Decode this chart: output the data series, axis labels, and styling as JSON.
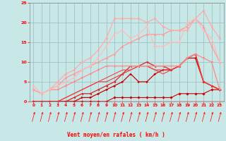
{
  "xlabel": "Vent moyen/en rafales ( km/h )",
  "xlim": [
    -0.5,
    23.5
  ],
  "ylim": [
    0,
    25
  ],
  "xtick_vals": [
    0,
    1,
    2,
    3,
    4,
    5,
    6,
    7,
    8,
    9,
    10,
    11,
    12,
    13,
    14,
    15,
    16,
    17,
    18,
    19,
    20,
    21,
    22,
    23
  ],
  "ytick_vals": [
    0,
    5,
    10,
    15,
    20,
    25
  ],
  "bg_color": "#c8e8e8",
  "grid_color": "#99bbbb",
  "lines": [
    {
      "x": [
        0,
        1,
        2,
        3,
        4,
        5,
        6,
        7,
        8,
        9,
        10,
        11,
        12,
        13,
        14,
        15,
        16,
        17,
        18,
        19,
        20,
        21,
        22,
        23
      ],
      "y": [
        0,
        0,
        0,
        0,
        0,
        0,
        0,
        0,
        0,
        0,
        1,
        1,
        1,
        1,
        1,
        1,
        1,
        1,
        2,
        2,
        2,
        2,
        3,
        3
      ],
      "color": "#cc0000",
      "lw": 0.8,
      "marker": "D",
      "ms": 1.8
    },
    {
      "x": [
        0,
        1,
        2,
        3,
        4,
        5,
        6,
        7,
        8,
        9,
        10,
        11,
        12,
        13,
        14,
        15,
        16,
        17,
        18,
        19,
        20,
        21,
        22,
        23
      ],
      "y": [
        0,
        0,
        0,
        0,
        0,
        0,
        1,
        1,
        2,
        3,
        4,
        5,
        7,
        5,
        5,
        7,
        8,
        8,
        9,
        11,
        11,
        5,
        4,
        3
      ],
      "color": "#cc0000",
      "lw": 0.9,
      "marker": ">",
      "ms": 2.0
    },
    {
      "x": [
        0,
        1,
        2,
        3,
        4,
        5,
        6,
        7,
        8,
        9,
        10,
        11,
        12,
        13,
        14,
        15,
        16,
        17,
        18,
        19,
        20,
        21,
        22,
        23
      ],
      "y": [
        0,
        0,
        0,
        0,
        0,
        1,
        2,
        2,
        3,
        4,
        5,
        7,
        9,
        9,
        10,
        9,
        9,
        8,
        9,
        11,
        12,
        5,
        4,
        3
      ],
      "color": "#dd2222",
      "lw": 0.9,
      "marker": "<",
      "ms": 2.0
    },
    {
      "x": [
        0,
        1,
        2,
        3,
        4,
        5,
        6,
        7,
        8,
        9,
        10,
        11,
        12,
        13,
        14,
        15,
        16,
        17,
        18,
        19,
        20,
        21,
        22,
        23
      ],
      "y": [
        0,
        0,
        0,
        0,
        1,
        2,
        3,
        4,
        5,
        5,
        6,
        7,
        8,
        9,
        9,
        8,
        8,
        8,
        9,
        11,
        12,
        5,
        4,
        3
      ],
      "color": "#ee3333",
      "lw": 0.8,
      "marker": null,
      "ms": 0
    },
    {
      "x": [
        0,
        1,
        2,
        3,
        4,
        5,
        6,
        7,
        8,
        9,
        10,
        11,
        12,
        13,
        14,
        15,
        16,
        17,
        18,
        19,
        20,
        21,
        22,
        23
      ],
      "y": [
        0,
        0,
        0,
        0,
        1,
        2,
        3,
        4,
        5,
        6,
        7,
        8,
        8,
        9,
        9,
        8,
        7,
        8,
        9,
        11,
        12,
        5,
        4,
        3
      ],
      "color": "#ee4444",
      "lw": 0.8,
      "marker": null,
      "ms": 0
    },
    {
      "x": [
        0,
        1,
        2,
        3,
        4,
        5,
        6,
        7,
        8,
        9,
        10,
        11,
        12,
        13,
        14,
        15,
        16,
        17,
        18,
        19,
        20,
        21,
        22,
        23
      ],
      "y": [
        3,
        2,
        3,
        3,
        4,
        5,
        6,
        7,
        8,
        9,
        9,
        9,
        9,
        9,
        9,
        9,
        9,
        9,
        9,
        11,
        12,
        11,
        10,
        3
      ],
      "color": "#ff8888",
      "lw": 0.9,
      "marker": "v",
      "ms": 2.0
    },
    {
      "x": [
        0,
        1,
        2,
        3,
        4,
        5,
        6,
        7,
        8,
        9,
        10,
        11,
        12,
        13,
        14,
        15,
        16,
        17,
        18,
        19,
        20,
        21,
        22,
        23
      ],
      "y": [
        3,
        2,
        3,
        4,
        6,
        7,
        8,
        9,
        10,
        11,
        12,
        14,
        15,
        16,
        17,
        17,
        17,
        18,
        18,
        19,
        21,
        19,
        14,
        10
      ],
      "color": "#ff9999",
      "lw": 0.9,
      "marker": "^",
      "ms": 2.0
    },
    {
      "x": [
        0,
        1,
        2,
        3,
        4,
        5,
        6,
        7,
        8,
        9,
        10,
        11,
        12,
        13,
        14,
        15,
        16,
        17,
        18,
        19,
        20,
        21,
        22,
        23
      ],
      "y": [
        3,
        2,
        3,
        5,
        7,
        8,
        10,
        11,
        13,
        16,
        21,
        21,
        21,
        21,
        20,
        21,
        19,
        18,
        18,
        18,
        21,
        23,
        19,
        16
      ],
      "color": "#ffaaaa",
      "lw": 0.9,
      "marker": "o",
      "ms": 2.0
    },
    {
      "x": [
        0,
        1,
        2,
        3,
        4,
        5,
        6,
        7,
        8,
        9,
        10,
        11,
        12,
        13,
        14,
        15,
        16,
        17,
        18,
        19,
        20,
        21,
        22,
        23
      ],
      "y": [
        4,
        2,
        3,
        4,
        5,
        6,
        8,
        9,
        11,
        14,
        17,
        18,
        16,
        17,
        19,
        14,
        14,
        15,
        15,
        20,
        21,
        18,
        16,
        10
      ],
      "color": "#ffbbbb",
      "lw": 0.9,
      "marker": "s",
      "ms": 2.0
    }
  ]
}
